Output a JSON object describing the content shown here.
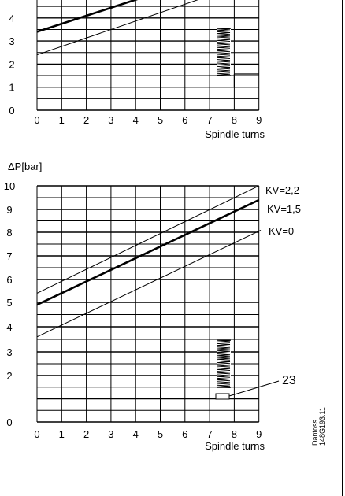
{
  "chart_data": [
    {
      "type": "line",
      "xlabel": "Spindle turns",
      "ylabel": "",
      "x_ticks": [
        "0",
        "1",
        "2",
        "3",
        "4",
        "5",
        "6",
        "7",
        "8",
        "9"
      ],
      "y_ticks": [
        "0",
        "1",
        "2",
        "3",
        "4"
      ],
      "xlim": [
        0,
        9
      ],
      "ylim": [
        0,
        4.5
      ],
      "grid": true,
      "series": [
        {
          "x": [
            0,
            4.6
          ],
          "y": [
            3.4,
            5
          ],
          "style": "thick"
        },
        {
          "x": [
            0,
            7.1
          ],
          "y": [
            2.4,
            5
          ],
          "style": "thin"
        }
      ],
      "spring_icon": "spring-icon"
    },
    {
      "type": "line",
      "ylabel": "ΔP[bar]",
      "xlabel": "Spindle turns",
      "x_ticks": [
        "0",
        "1",
        "2",
        "3",
        "4",
        "5",
        "6",
        "7",
        "8",
        "9"
      ],
      "y_ticks": [
        "0",
        "2",
        "3",
        "4",
        "5",
        "6",
        "7",
        "8",
        "9",
        "10"
      ],
      "xlim": [
        0,
        9
      ],
      "ylim": [
        0,
        10
      ],
      "y_scale": "nonlinear",
      "grid": true,
      "series": [
        {
          "name": "KV=2,2",
          "x": [
            0,
            9
          ],
          "y": [
            5.4,
            10.0
          ],
          "style": "thin"
        },
        {
          "name": "KV=1,5",
          "x": [
            0,
            9
          ],
          "y": [
            4.9,
            9.4
          ],
          "style": "thick"
        },
        {
          "name": "KV=0",
          "x": [
            0,
            9
          ],
          "y": [
            3.6,
            8.05
          ],
          "style": "thin"
        }
      ],
      "callout": "23",
      "spring_icon": "spring-icon"
    }
  ],
  "credit": {
    "line1": "Danfoss",
    "line2": "148G193.11"
  },
  "colors": {
    "ink": "#000000",
    "background": "#ffffff"
  }
}
